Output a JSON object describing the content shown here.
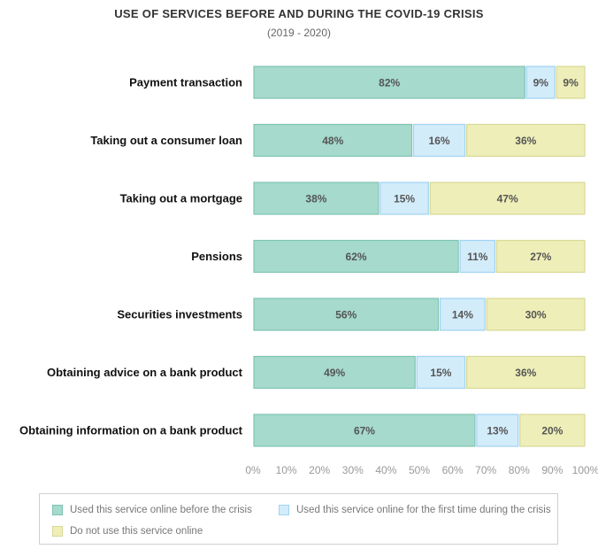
{
  "chart_data": {
    "type": "bar",
    "orientation": "horizontal-stacked",
    "title": "USE OF SERVICES BEFORE AND DURING THE COVID-19 CRISIS",
    "subtitle": "(2019 - 2020)",
    "categories": [
      "Payment transaction",
      "Taking out a consumer loan",
      "Taking out a mortgage",
      "Pensions",
      "Securities investments",
      "Obtaining advice on a bank product",
      "Obtaining information on a bank product"
    ],
    "series": [
      {
        "name": "Used this service online before the crisis",
        "color": "#a5dacc",
        "border": "#7fc4b3",
        "values": [
          82,
          48,
          38,
          62,
          56,
          49,
          67
        ]
      },
      {
        "name": "Used this service online for the first time during the crisis",
        "color": "#d3ecfa",
        "border": "#9fd3f2",
        "values": [
          9,
          16,
          15,
          11,
          14,
          15,
          13
        ]
      },
      {
        "name": "Do not use this service online",
        "color": "#eeeeb8",
        "border": "#d8d896",
        "values": [
          9,
          36,
          47,
          27,
          30,
          36,
          20
        ]
      }
    ],
    "value_labels": [
      [
        "82%",
        "9%",
        "9%"
      ],
      [
        "48%",
        "16%",
        "36%"
      ],
      [
        "38%",
        "15%",
        "47%"
      ],
      [
        "62%",
        "11%",
        "27%"
      ],
      [
        "56%",
        "14%",
        "30%"
      ],
      [
        "49%",
        "15%",
        "36%"
      ],
      [
        "67%",
        "13%",
        "20%"
      ]
    ],
    "x_ticks": [
      "0%",
      "10%",
      "20%",
      "30%",
      "40%",
      "50%",
      "60%",
      "70%",
      "80%",
      "90%",
      "100%"
    ],
    "xlim": [
      0,
      100
    ],
    "grid": false,
    "legend_position": "bottom"
  }
}
